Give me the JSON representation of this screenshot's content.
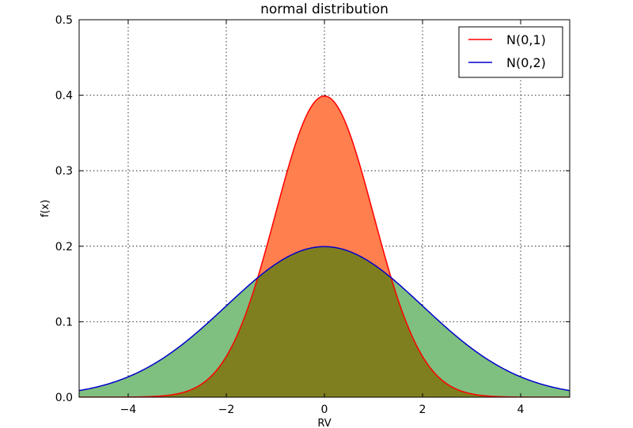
{
  "chart_data": {
    "type": "area",
    "title": "normal distribution",
    "xlabel": "RV",
    "ylabel": "f(x)",
    "xlim": [
      -5,
      5
    ],
    "ylim": [
      0,
      0.5
    ],
    "grid": true,
    "legend_position": "top-right",
    "x_ticks": [
      -4,
      -2,
      0,
      2,
      4
    ],
    "x_tick_labels": [
      "−4",
      "−2",
      "0",
      "2",
      "4"
    ],
    "y_ticks": [
      0.0,
      0.1,
      0.2,
      0.3,
      0.4,
      0.5
    ],
    "y_tick_labels": [
      "0.0",
      "0.1",
      "0.2",
      "0.3",
      "0.4",
      "0.5"
    ],
    "x": [
      -5,
      -4.5,
      -4,
      -3.5,
      -3,
      -2.5,
      -2,
      -1.5,
      -1,
      -0.5,
      0,
      0.5,
      1,
      1.5,
      2,
      2.5,
      3,
      3.5,
      4,
      4.5,
      5
    ],
    "series": [
      {
        "name": "N(0,1)",
        "mean": 0,
        "sd": 1,
        "line_color": "#ff0000",
        "fill_color": "#ff7f4f",
        "values": [
          0.0,
          0.0,
          0.0001,
          0.0009,
          0.0044,
          0.0175,
          0.054,
          0.1295,
          0.242,
          0.3521,
          0.3989,
          0.3521,
          0.242,
          0.1295,
          0.054,
          0.0175,
          0.0044,
          0.0009,
          0.0001,
          0.0,
          0.0
        ]
      },
      {
        "name": "N(0,2)",
        "mean": 0,
        "sd": 2,
        "line_color": "#0000cc",
        "fill_color": "#7fbf7f",
        "values": [
          0.0088,
          0.0158,
          0.027,
          0.0431,
          0.0648,
          0.0913,
          0.121,
          0.1506,
          0.176,
          0.1933,
          0.1995,
          0.1933,
          0.176,
          0.1506,
          0.121,
          0.0913,
          0.0648,
          0.0431,
          0.027,
          0.0158,
          0.0088
        ]
      }
    ],
    "overlap_fill_color": "#7f7f1f"
  }
}
